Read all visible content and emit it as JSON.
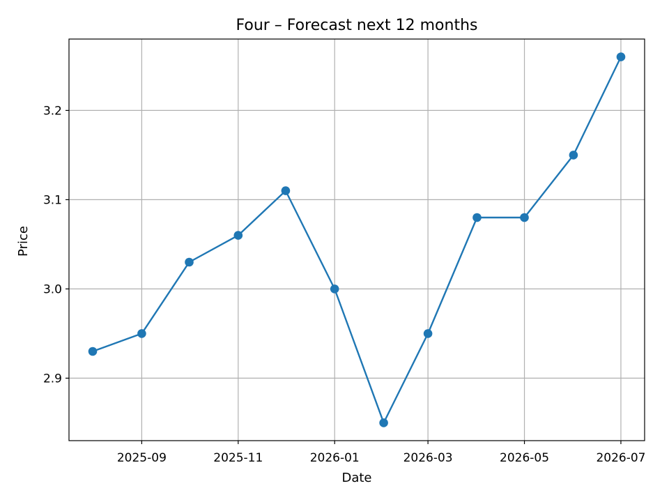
{
  "chart_data": {
    "type": "line",
    "title": "Four – Forecast next 12 months",
    "xlabel": "Date",
    "ylabel": "Price",
    "x": [
      "2025-08-01",
      "2025-09-01",
      "2025-10-01",
      "2025-11-01",
      "2025-12-01",
      "2026-01-01",
      "2026-02-01",
      "2026-03-01",
      "2026-04-01",
      "2026-05-01",
      "2026-06-01",
      "2026-07-01"
    ],
    "values": [
      2.93,
      2.95,
      3.03,
      3.06,
      3.11,
      3.0,
      2.85,
      2.95,
      3.08,
      3.08,
      3.15,
      3.26
    ],
    "xticks": [
      "2025-09",
      "2025-11",
      "2026-01",
      "2026-03",
      "2026-05",
      "2026-07"
    ],
    "yticks": [
      "2.9",
      "3.0",
      "3.1",
      "3.2"
    ],
    "xlim": [
      "2025-07-17",
      "2026-07-16"
    ],
    "ylim": [
      2.83,
      3.28
    ],
    "grid": true,
    "line_color": "#1f77b4",
    "marker": "circle"
  }
}
